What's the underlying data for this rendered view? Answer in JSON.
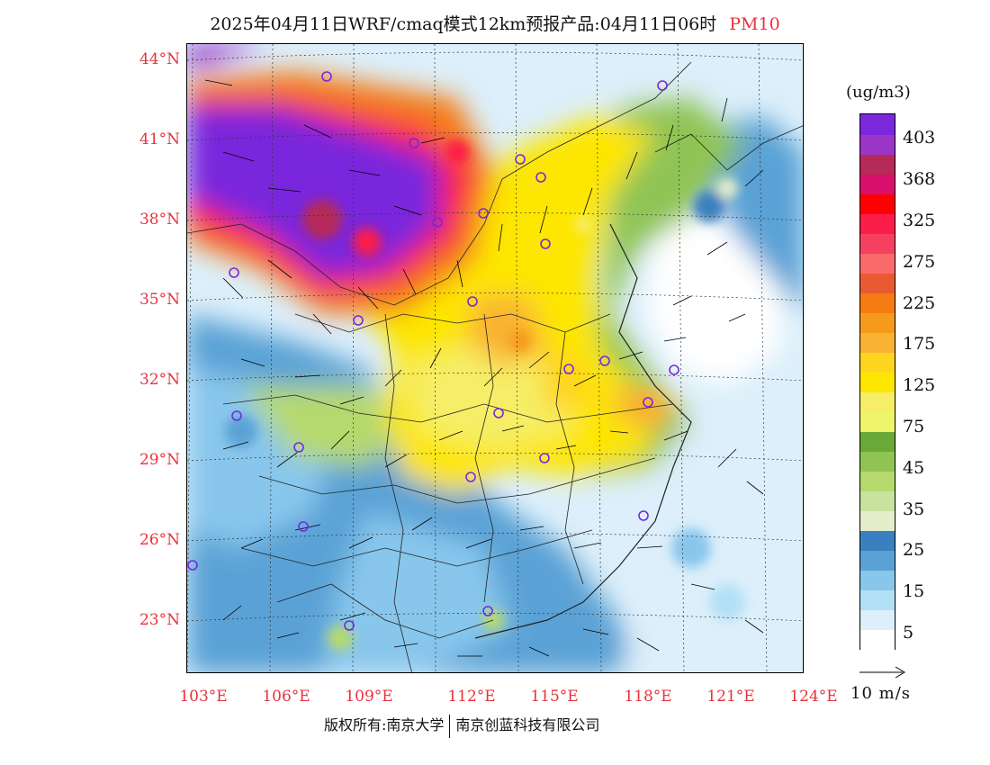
{
  "title": {
    "text": "2025年04月11日WRF/cmaq模式12km预报产品:04月11日06时",
    "pollutant": "PM10"
  },
  "lat_labels": [
    "44°N",
    "41°N",
    "38°N",
    "35°N",
    "32°N",
    "29°N",
    "26°N",
    "23°N"
  ],
  "lon_labels": [
    "103°E",
    "106°E",
    "109°E",
    "112°E",
    "115°E",
    "118°E",
    "121°E",
    "124°E"
  ],
  "colorbar": {
    "unit": "(ug/m3)",
    "colors": [
      "#ffffff",
      "#dceffa",
      "#b2e0f6",
      "#88c6ec",
      "#5aa2d6",
      "#3a80c0",
      "#e4eecb",
      "#c9e29d",
      "#b6d96d",
      "#8fc455",
      "#6aa838",
      "#eff56a",
      "#f5ee66",
      "#fde600",
      "#ffd41e",
      "#f9b233",
      "#f69a1c",
      "#f47c12",
      "#e95a32",
      "#fb6a6a",
      "#f64060",
      "#fb1e4a",
      "#ff0000",
      "#d80f6c",
      "#b52a56",
      "#9b35c8",
      "#7a28dc"
    ],
    "labels": [
      "5",
      "15",
      "25",
      "35",
      "45",
      "75",
      "125",
      "175",
      "225",
      "275",
      "325",
      "368",
      "403"
    ]
  },
  "wind_reference": {
    "label": "10 m/s"
  },
  "copyright": {
    "left": "版权所有:南京大学",
    "right": "南京创蓝科技有限公司"
  }
}
